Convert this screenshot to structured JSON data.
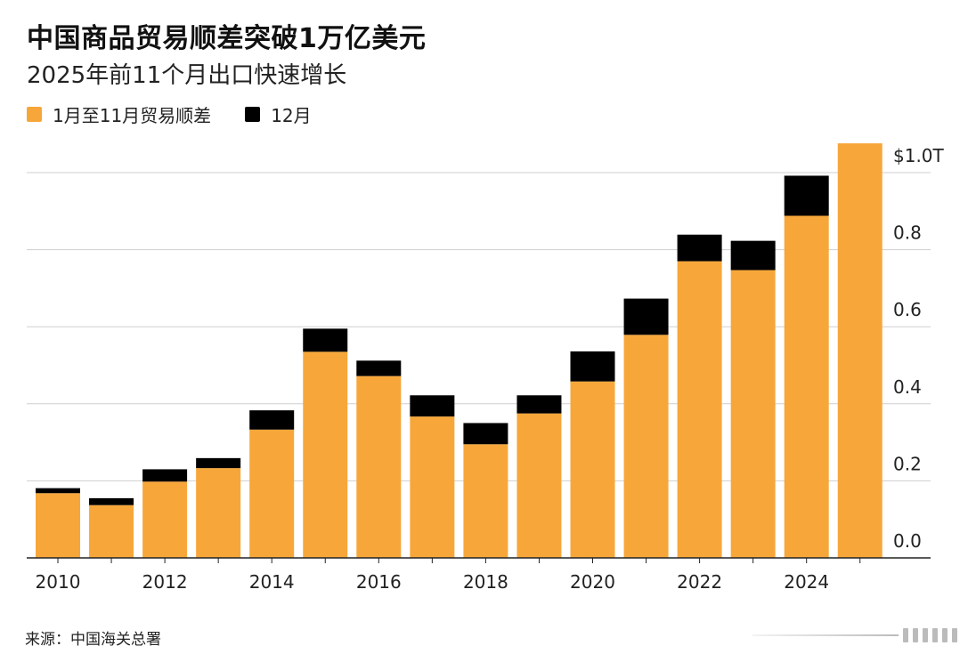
{
  "title": "中国商品贸易顺差突破1万亿美元",
  "subtitle": "2025年前11个月出口快速增长",
  "legend": {
    "series1": {
      "label": "1月至11月贸易顺差",
      "color": "#f7a73a"
    },
    "series2": {
      "label": "12月",
      "color": "#000000"
    }
  },
  "source": "来源：中国海关总署",
  "chart_data": {
    "type": "bar",
    "stacked": true,
    "categories": [
      "2010",
      "2011",
      "2012",
      "2013",
      "2014",
      "2015",
      "2016",
      "2017",
      "2018",
      "2019",
      "2020",
      "2021",
      "2022",
      "2023",
      "2024",
      "2025"
    ],
    "series": [
      {
        "name": "1月至11月贸易顺差",
        "color": "#f7a73a",
        "values": [
          0.168,
          0.137,
          0.198,
          0.233,
          0.333,
          0.535,
          0.472,
          0.367,
          0.295,
          0.375,
          0.458,
          0.579,
          0.77,
          0.747,
          0.888,
          1.076
        ]
      },
      {
        "name": "12月",
        "color": "#000000",
        "values": [
          0.013,
          0.018,
          0.032,
          0.026,
          0.05,
          0.06,
          0.04,
          0.055,
          0.055,
          0.047,
          0.078,
          0.094,
          0.069,
          0.076,
          0.104,
          0.0
        ]
      }
    ],
    "x_tick_labels": [
      "2010",
      "2012",
      "2014",
      "2016",
      "2018",
      "2020",
      "2022",
      "2024"
    ],
    "y_ticks": [
      0,
      0.2,
      0.4,
      0.6,
      0.8,
      1.0
    ],
    "y_tick_labels": [
      "0.0",
      "0.2",
      "0.4",
      "0.6",
      "0.8",
      "$1.0T"
    ],
    "ylim": [
      0,
      1.1
    ],
    "xlabel": "",
    "ylabel": "",
    "grid": true,
    "y_axis_position": "right"
  }
}
